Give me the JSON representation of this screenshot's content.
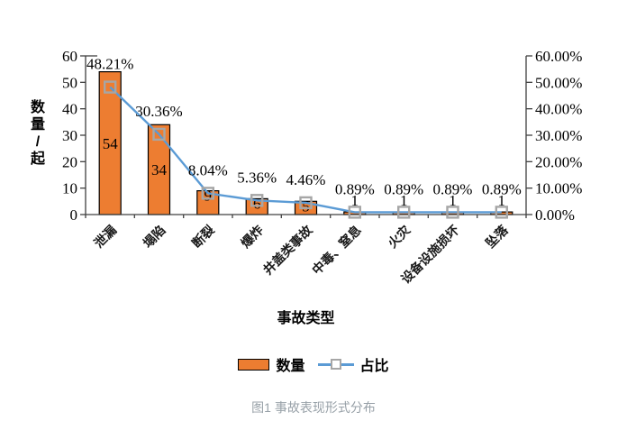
{
  "figure": {
    "caption": "图1 事故表现形式分布"
  },
  "legend": {
    "items": [
      {
        "label": "数量",
        "swatch": "bar"
      },
      {
        "label": "占比",
        "swatch": "line-marker"
      }
    ]
  },
  "chart_data": {
    "type": "combo-bar-line",
    "categories": [
      "泄漏",
      "塌陷",
      "断裂",
      "爆炸",
      "井盖类事故",
      "中毒、窒息",
      "火灾",
      "设备设施损坏",
      "坠落"
    ],
    "series": [
      {
        "name": "数量",
        "type": "bar",
        "axis": "left",
        "values": [
          54,
          34,
          9,
          6,
          5,
          1,
          1,
          1,
          1
        ]
      },
      {
        "name": "占比",
        "type": "line",
        "axis": "right",
        "values": [
          48.21,
          30.36,
          8.04,
          5.36,
          4.46,
          0.89,
          0.89,
          0.89,
          0.89
        ],
        "labels": [
          "48.21%",
          "30.36%",
          "8.04%",
          "5.36%",
          "4.46%",
          "0.89%",
          "0.89%",
          "0.89%",
          "0.89%"
        ]
      }
    ],
    "left_axis": {
      "title": "数量/起",
      "min": 0,
      "max": 60,
      "tick_values": [
        0,
        10,
        20,
        30,
        40,
        50,
        60
      ],
      "tick_labels": [
        "0",
        "10",
        "20",
        "30",
        "40",
        "50",
        "60"
      ]
    },
    "right_axis": {
      "min": 0,
      "max": 60,
      "tick_values": [
        0,
        10,
        20,
        30,
        40,
        50,
        60
      ],
      "tick_labels": [
        "0.00%",
        "10.00%",
        "20.00%",
        "30.00%",
        "40.00%",
        "50.00%",
        "60.00%"
      ]
    },
    "x_axis": {
      "title": "事故类型"
    },
    "grid": false,
    "legend_position": "bottom"
  },
  "colors": {
    "bar_fill": "#ED7D31",
    "bar_border": "#000000",
    "line": "#5B9BD5",
    "marker": "#A6A6A6",
    "axis": "#404040",
    "text": "#000000",
    "category_text": "#1a1a1a",
    "caption": "#98A1A8"
  }
}
